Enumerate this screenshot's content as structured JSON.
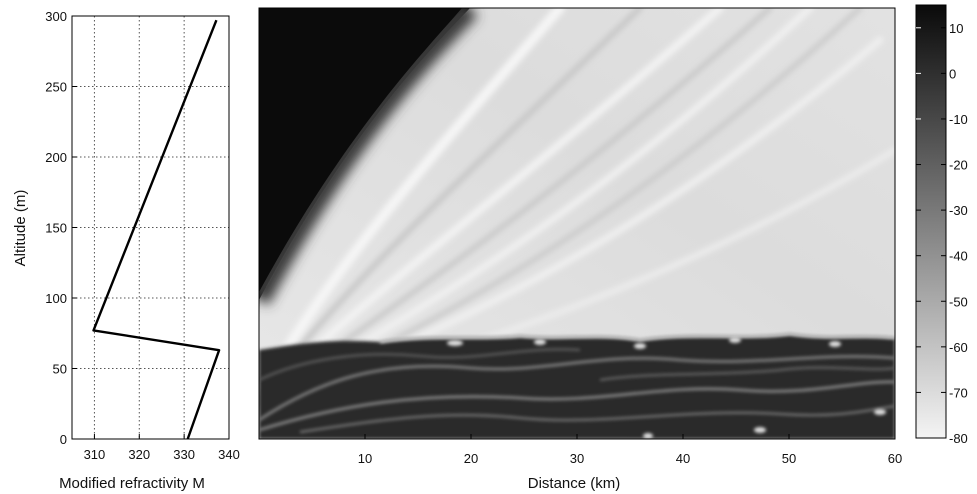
{
  "chart_data": [
    {
      "type": "line",
      "xlabel": "Modified refractivity M",
      "ylabel": "Altitude (m)",
      "xlim": [
        305,
        340
      ],
      "ylim": [
        0,
        300
      ],
      "xticks": [
        310,
        320,
        330,
        340
      ],
      "yticks": [
        0,
        50,
        100,
        150,
        200,
        250,
        300
      ],
      "grid": true,
      "series": [
        {
          "x": [
            330.8,
            337.8,
            309.8,
            337.2
          ],
          "y": [
            0,
            63,
            77,
            297
          ]
        }
      ]
    },
    {
      "type": "heatmap",
      "xlabel": "Distance (km)",
      "ylabel": "",
      "xlim": [
        0,
        60
      ],
      "ylim": [
        0,
        300
      ],
      "xticks": [
        10,
        20,
        30,
        40,
        50,
        60
      ],
      "grid": false,
      "colorbar": {
        "ticks": [
          10,
          0,
          -10,
          -20,
          -30,
          -40,
          -50,
          -60,
          -70,
          -80
        ],
        "range": [
          -80,
          15
        ],
        "colormap": "gray"
      }
    }
  ],
  "colors": {
    "line": "#000000",
    "grid": "#555555",
    "axis": "#000000"
  }
}
